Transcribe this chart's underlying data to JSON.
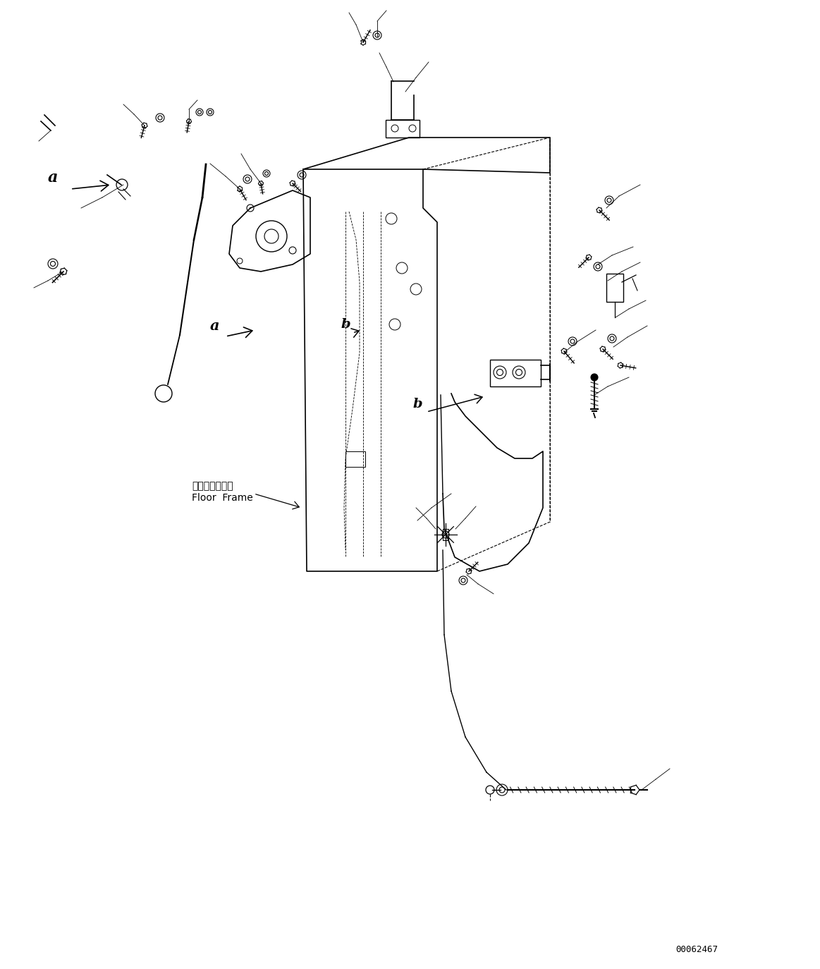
{
  "bg_color": "#ffffff",
  "line_color": "#000000",
  "fig_width": 11.63,
  "fig_height": 13.74,
  "dpi": 100,
  "part_number": "00062467",
  "floor_frame_jp": "フロアフレーム",
  "floor_frame_en": "Floor  Frame"
}
